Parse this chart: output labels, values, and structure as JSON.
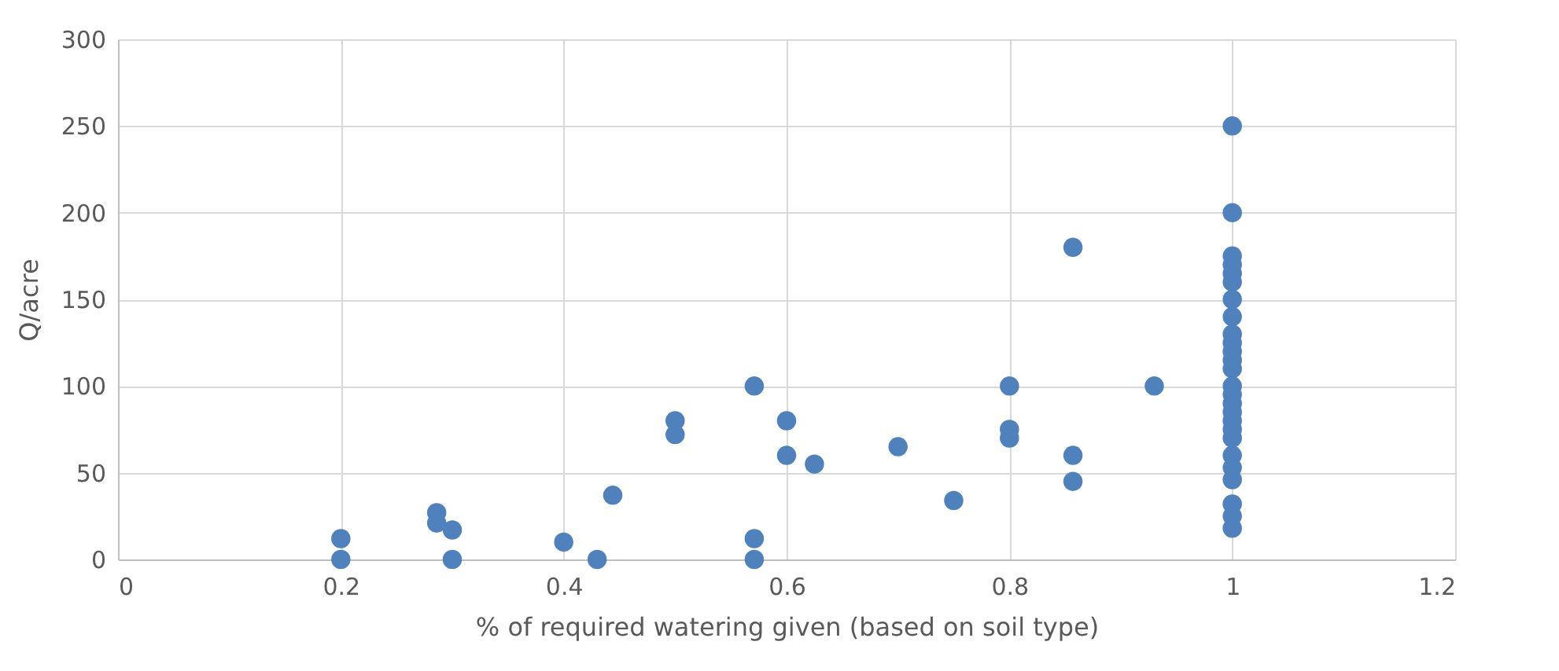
{
  "chart_data": {
    "type": "scatter",
    "xlabel": "% of required watering given (based on soil type)",
    "ylabel": "Q/acre",
    "x": [
      0.2,
      0.2,
      0.286,
      0.286,
      0.3,
      0.3,
      0.4,
      0.43,
      0.444,
      0.5,
      0.5,
      0.571,
      0.571,
      0.571,
      0.6,
      0.6,
      0.625,
      0.7,
      0.75,
      0.8,
      0.8,
      0.8,
      0.857,
      0.857,
      0.857,
      0.93,
      1,
      1,
      1,
      1,
      1,
      1,
      1,
      1,
      1,
      1,
      1,
      1,
      1,
      1,
      1,
      1,
      1,
      1,
      1,
      1,
      1,
      1,
      1,
      1,
      1,
      1
    ],
    "series": [
      {
        "color": "#4f81bd",
        "values": [
          12,
          0,
          27,
          21,
          17,
          0,
          10,
          0,
          37,
          80,
          72,
          100,
          12,
          0,
          80,
          60,
          55,
          65,
          34,
          100,
          75,
          70,
          180,
          60,
          45,
          100,
          250,
          200,
          175,
          170,
          165,
          160,
          150,
          140,
          130,
          125,
          120,
          115,
          110,
          100,
          95,
          90,
          85,
          80,
          75,
          70,
          60,
          53,
          46,
          32,
          25,
          18
        ]
      }
    ],
    "xlim": [
      0,
      1.2
    ],
    "xticks": [
      0,
      0.2,
      0.4,
      0.6,
      0.8,
      1,
      1.2
    ],
    "ylim": [
      0,
      300
    ],
    "yticks": [
      0,
      50,
      100,
      150,
      200,
      250,
      300
    ],
    "grid": true,
    "marker": "circle"
  }
}
